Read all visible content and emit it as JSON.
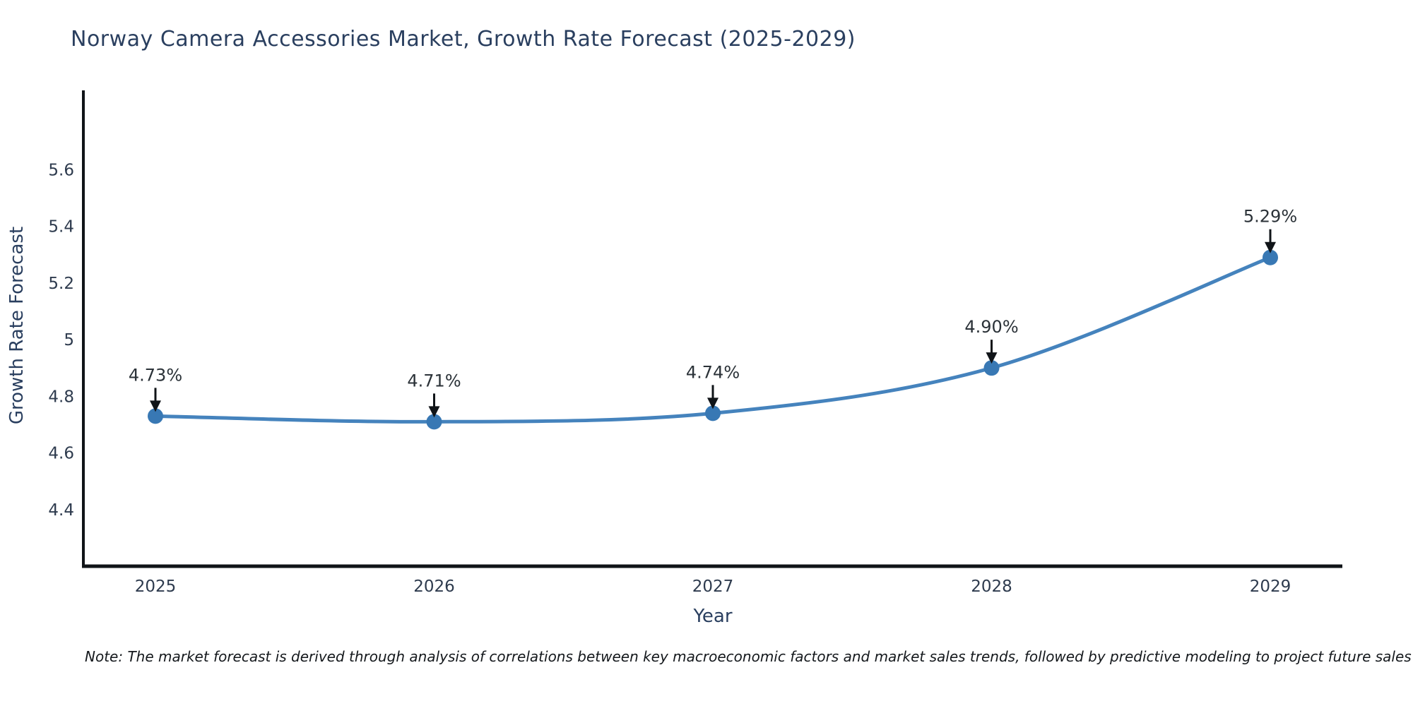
{
  "page": {
    "title": "Norway Camera Accessories Market, Growth Rate Forecast (2025-2029)",
    "note": "Note: The market forecast is derived through analysis of correlations between key macroeconomic factors and market sales trends, followed by predictive modeling to project future sales"
  },
  "chart_data": {
    "type": "line",
    "title": "Norway Camera Accessories Market, Growth Rate Forecast (2025-2029)",
    "xlabel": "Year",
    "ylabel": "Growth Rate Forecast",
    "x": [
      "2025",
      "2026",
      "2027",
      "2028",
      "2029"
    ],
    "series": [
      {
        "name": "Growth Rate Forecast",
        "values": [
          4.73,
          4.71,
          4.74,
          4.9,
          5.29
        ]
      }
    ],
    "point_labels": [
      "4.73%",
      "4.71%",
      "4.74%",
      "4.90%",
      "5.29%"
    ],
    "ytick_labels": [
      "5.6",
      "5.4",
      "5.2",
      "5",
      "4.8",
      "4.6",
      "4.4"
    ],
    "ylim": [
      4.2,
      5.88
    ],
    "grid": false,
    "legend": false,
    "line_shape": "spline",
    "annotation_style": "value labels above points with downward black arrows",
    "colors": {
      "line": "#4583bd",
      "marker": "#3878b4",
      "axis": "#101418",
      "tick_text": "#2e3b4e",
      "title_text": "#2a3f5f",
      "annotation_text": "#2b3238"
    }
  }
}
